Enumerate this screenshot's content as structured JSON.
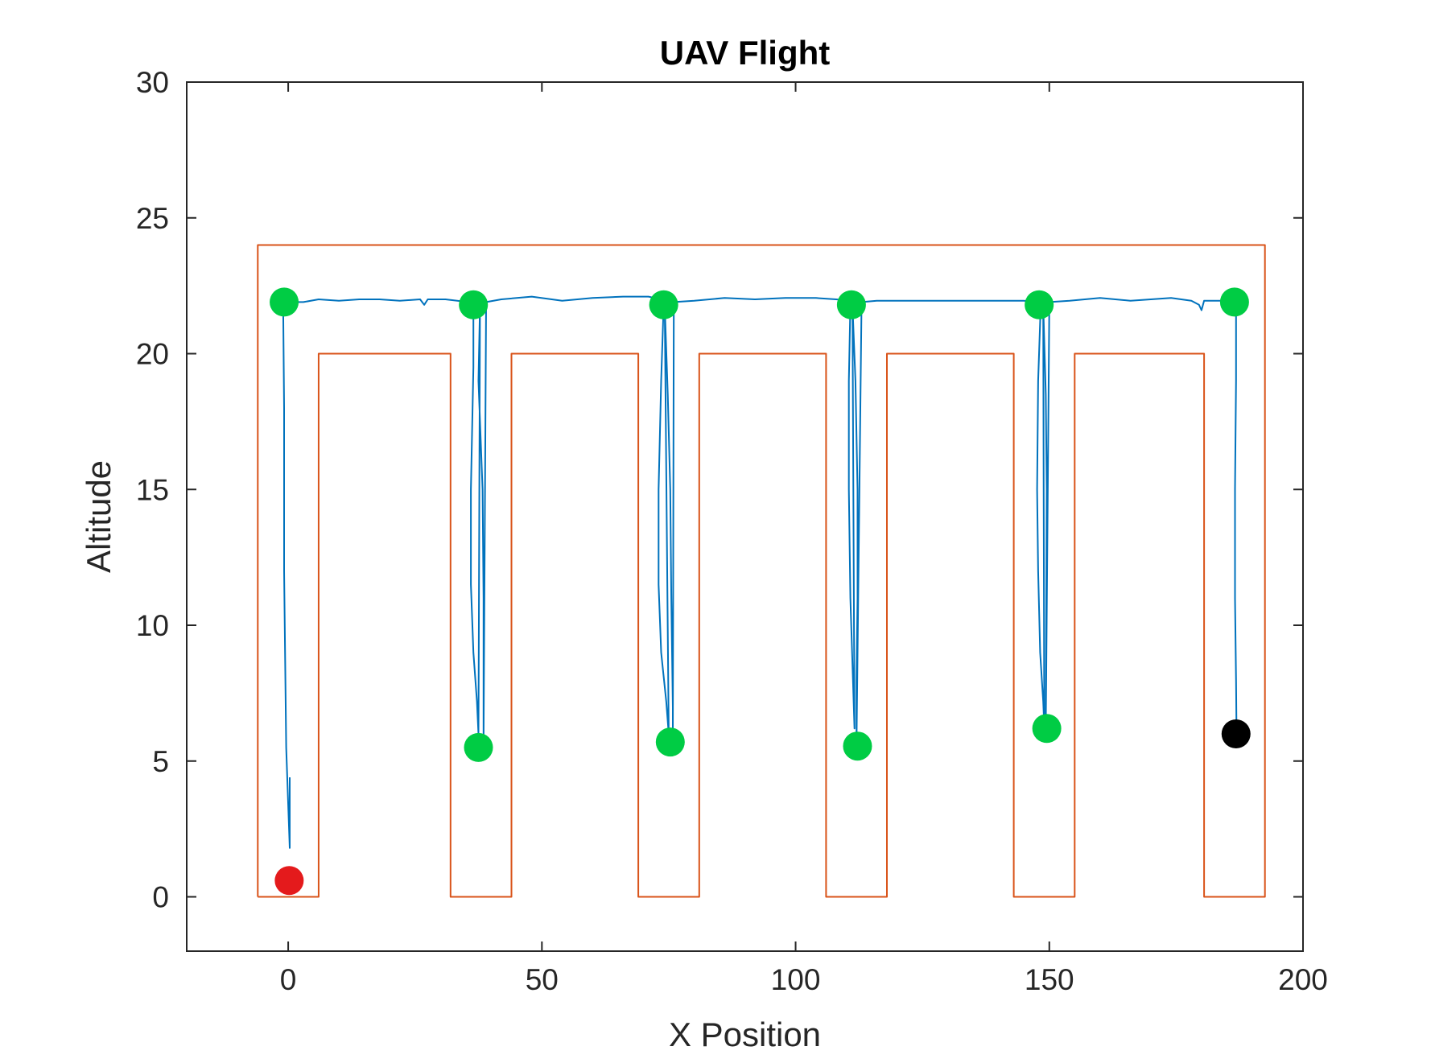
{
  "chart_data": {
    "type": "line",
    "title": "UAV Flight",
    "xlabel": "X Position",
    "ylabel": "Altitude",
    "xlim": [
      -20,
      200
    ],
    "ylim": [
      -2,
      30
    ],
    "xticks": [
      0,
      50,
      100,
      150,
      200
    ],
    "yticks": [
      0,
      5,
      10,
      15,
      20,
      25,
      30
    ],
    "grid": false,
    "colors": {
      "boundary": "#D95319",
      "flight_path": "#0072BD",
      "start_marker": "#E41A1C",
      "waypoint_marker": "#00CC44",
      "end_marker": "#000000",
      "axes": "#262626"
    },
    "series": [
      {
        "role": "boundary",
        "points": [
          [
            -6,
            0
          ],
          [
            -6,
            24
          ],
          [
            192.5,
            24
          ],
          [
            192.5,
            0
          ],
          [
            180.5,
            0
          ],
          [
            180.5,
            20
          ],
          [
            155,
            20
          ],
          [
            155,
            0
          ],
          [
            143,
            0
          ],
          [
            143,
            20
          ],
          [
            118,
            20
          ],
          [
            118,
            0
          ],
          [
            106,
            0
          ],
          [
            106,
            20
          ],
          [
            81,
            20
          ],
          [
            81,
            0
          ],
          [
            69,
            0
          ],
          [
            69,
            20
          ],
          [
            44,
            20
          ],
          [
            44,
            0
          ],
          [
            32,
            0
          ],
          [
            32,
            20
          ],
          [
            6,
            20
          ],
          [
            6,
            0
          ],
          [
            -6,
            0
          ]
        ]
      },
      {
        "role": "flight_path",
        "points": [
          [
            0.3,
            4.4
          ],
          [
            0.3,
            1.8
          ],
          [
            -0.4,
            5.5
          ],
          [
            -0.8,
            12
          ],
          [
            -0.8,
            18
          ],
          [
            -1,
            21.9
          ],
          [
            3,
            21.9
          ],
          [
            6,
            22
          ],
          [
            10,
            21.95
          ],
          [
            14,
            22
          ],
          [
            18,
            22
          ],
          [
            22,
            21.95
          ],
          [
            26,
            22
          ],
          [
            26.8,
            21.8
          ],
          [
            27.5,
            22
          ],
          [
            31,
            22
          ],
          [
            35.5,
            21.9
          ],
          [
            36.5,
            21.8
          ],
          [
            36.5,
            19.5
          ],
          [
            36,
            15
          ],
          [
            36,
            11.5
          ],
          [
            36.5,
            9
          ],
          [
            37.2,
            7.2
          ],
          [
            37.5,
            6
          ],
          [
            37.8,
            21.8
          ],
          [
            37.5,
            19
          ],
          [
            38.3,
            15
          ],
          [
            38.5,
            11
          ],
          [
            38.5,
            7
          ],
          [
            38.5,
            5.6
          ],
          [
            39,
            21.9
          ],
          [
            42,
            22
          ],
          [
            48,
            22.1
          ],
          [
            54,
            21.95
          ],
          [
            60,
            22.05
          ],
          [
            66,
            22.1
          ],
          [
            71,
            22.1
          ],
          [
            73.5,
            22
          ],
          [
            74,
            21.8
          ],
          [
            73.5,
            19
          ],
          [
            73,
            15
          ],
          [
            73,
            11.5
          ],
          [
            73.5,
            9
          ],
          [
            74.5,
            7.2
          ],
          [
            75,
            6
          ],
          [
            74.2,
            21.8
          ],
          [
            74.8,
            18.5
          ],
          [
            75.3,
            15
          ],
          [
            75.5,
            11
          ],
          [
            75.8,
            7
          ],
          [
            75.8,
            5.8
          ],
          [
            76,
            21.9
          ],
          [
            80,
            21.95
          ],
          [
            86,
            22.05
          ],
          [
            92,
            22
          ],
          [
            98,
            22.05
          ],
          [
            104,
            22.05
          ],
          [
            108,
            22
          ],
          [
            110.5,
            21.95
          ],
          [
            110.8,
            21.8
          ],
          [
            110.5,
            19
          ],
          [
            110.5,
            15
          ],
          [
            110.8,
            11
          ],
          [
            111.3,
            8
          ],
          [
            111.6,
            6.2
          ],
          [
            111.2,
            21.8
          ],
          [
            111.8,
            19
          ],
          [
            112.2,
            15
          ],
          [
            112.2,
            11
          ],
          [
            112,
            8
          ],
          [
            112,
            5.6
          ],
          [
            113,
            21.9
          ],
          [
            116,
            21.95
          ],
          [
            122,
            21.95
          ],
          [
            128,
            21.95
          ],
          [
            134,
            21.95
          ],
          [
            140,
            21.95
          ],
          [
            145,
            21.95
          ],
          [
            147.5,
            21.9
          ],
          [
            148.3,
            21.8
          ],
          [
            147.8,
            19
          ],
          [
            147.6,
            15
          ],
          [
            147.8,
            12
          ],
          [
            148.2,
            9
          ],
          [
            148.8,
            7.2
          ],
          [
            149,
            6.3
          ],
          [
            148.8,
            21.8
          ],
          [
            149.3,
            18.5
          ],
          [
            149.5,
            15
          ],
          [
            149.4,
            11
          ],
          [
            149.3,
            6.2
          ],
          [
            150,
            21.9
          ],
          [
            154,
            21.95
          ],
          [
            160,
            22.05
          ],
          [
            166,
            21.95
          ],
          [
            170,
            22
          ],
          [
            174,
            22.05
          ],
          [
            178,
            21.95
          ],
          [
            179.5,
            21.8
          ],
          [
            180,
            21.6
          ],
          [
            180.5,
            21.95
          ],
          [
            184,
            21.95
          ],
          [
            186.3,
            21.9
          ],
          [
            186.8,
            21.8
          ],
          [
            186.8,
            19
          ],
          [
            186.6,
            15
          ],
          [
            186.6,
            11
          ],
          [
            186.8,
            8
          ],
          [
            186.9,
            6
          ]
        ]
      }
    ],
    "markers": [
      {
        "role": "start",
        "x": 0.2,
        "y": 0.6
      },
      {
        "role": "waypoint",
        "x": -0.8,
        "y": 21.9
      },
      {
        "role": "waypoint",
        "x": 36.5,
        "y": 21.8
      },
      {
        "role": "waypoint",
        "x": 74,
        "y": 21.8
      },
      {
        "role": "waypoint",
        "x": 111,
        "y": 21.8
      },
      {
        "role": "waypoint",
        "x": 148,
        "y": 21.8
      },
      {
        "role": "waypoint",
        "x": 186.5,
        "y": 21.9
      },
      {
        "role": "waypoint",
        "x": 37.5,
        "y": 5.5
      },
      {
        "role": "waypoint",
        "x": 75.3,
        "y": 5.7
      },
      {
        "role": "waypoint",
        "x": 112.2,
        "y": 5.55
      },
      {
        "role": "waypoint",
        "x": 149.5,
        "y": 6.2
      },
      {
        "role": "end",
        "x": 186.8,
        "y": 6
      }
    ]
  }
}
